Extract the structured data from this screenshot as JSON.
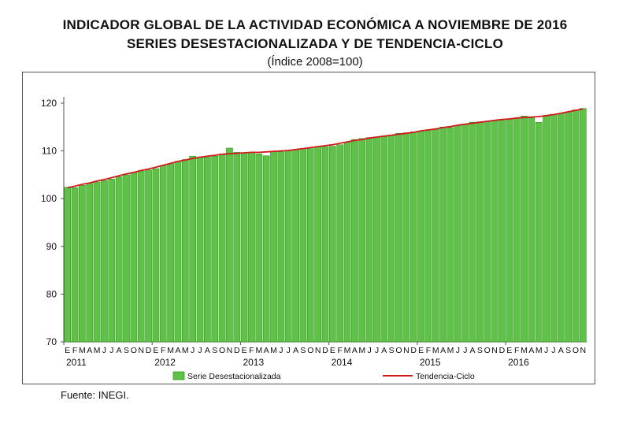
{
  "header": {
    "title_line1": "INDICADOR GLOBAL DE LA ACTIVIDAD ECONÓMICA A NOVIEMBRE DE 2016",
    "title_line2": "SERIES DESESTACIONALIZADA Y DE TENDENCIA-CICLO",
    "subtitle": "(Índice 2008=100)"
  },
  "footer": {
    "source": "Fuente: INEGI."
  },
  "colors": {
    "bar_fill": "#5ec246",
    "bar_edge": "#2e8a1c",
    "trend": "#d11a1a",
    "axis": "#555555"
  },
  "chart_data": {
    "type": "bar",
    "ylim": [
      70,
      120
    ],
    "yticks": [
      70,
      80,
      90,
      100,
      110,
      120
    ],
    "grid": false,
    "month_labels": [
      "E",
      "F",
      "M",
      "A",
      "M",
      "J",
      "J",
      "A",
      "S",
      "O",
      "N",
      "D"
    ],
    "years": [
      "2011",
      "2012",
      "2013",
      "2014",
      "2015",
      "2016"
    ],
    "categories": [
      "2011-01",
      "2011-02",
      "2011-03",
      "2011-04",
      "2011-05",
      "2011-06",
      "2011-07",
      "2011-08",
      "2011-09",
      "2011-10",
      "2011-11",
      "2011-12",
      "2012-01",
      "2012-02",
      "2012-03",
      "2012-04",
      "2012-05",
      "2012-06",
      "2012-07",
      "2012-08",
      "2012-09",
      "2012-10",
      "2012-11",
      "2012-12",
      "2013-01",
      "2013-02",
      "2013-03",
      "2013-04",
      "2013-05",
      "2013-06",
      "2013-07",
      "2013-08",
      "2013-09",
      "2013-10",
      "2013-11",
      "2013-12",
      "2014-01",
      "2014-02",
      "2014-03",
      "2014-04",
      "2014-05",
      "2014-06",
      "2014-07",
      "2014-08",
      "2014-09",
      "2014-10",
      "2014-11",
      "2014-12",
      "2015-01",
      "2015-02",
      "2015-03",
      "2015-04",
      "2015-05",
      "2015-06",
      "2015-07",
      "2015-08",
      "2015-09",
      "2015-10",
      "2015-11",
      "2015-12",
      "2016-01",
      "2016-02",
      "2016-03",
      "2016-04",
      "2016-05",
      "2016-06",
      "2016-07",
      "2016-08",
      "2016-09",
      "2016-10",
      "2016-11"
    ],
    "legend_position": "bottom",
    "series": [
      {
        "name": "Serie Desestacionalizada",
        "kind": "bar",
        "values": [
          102.4,
          102.3,
          102.8,
          103.2,
          103.5,
          103.8,
          104.1,
          104.6,
          105.0,
          105.5,
          105.8,
          106.0,
          106.3,
          106.9,
          107.3,
          107.8,
          108.2,
          108.9,
          108.6,
          108.7,
          108.9,
          109.3,
          110.6,
          109.7,
          109.6,
          109.7,
          109.4,
          109.0,
          109.9,
          109.8,
          110.1,
          110.3,
          110.5,
          110.5,
          110.9,
          110.9,
          111.0,
          111.3,
          111.8,
          112.4,
          112.6,
          112.8,
          112.9,
          113.0,
          113.2,
          113.7,
          113.8,
          114.0,
          114.2,
          114.3,
          114.5,
          115.0,
          114.9,
          115.3,
          115.6,
          116.0,
          116.1,
          116.1,
          116.3,
          116.4,
          116.7,
          116.8,
          117.3,
          116.9,
          116.0,
          117.4,
          117.7,
          117.8,
          118.1,
          118.6,
          118.9
        ]
      },
      {
        "name": "Tendencia-Ciclo",
        "kind": "line",
        "values": [
          102.3,
          102.6,
          103.0,
          103.3,
          103.7,
          104.0,
          104.4,
          104.8,
          105.2,
          105.5,
          105.9,
          106.2,
          106.6,
          107.0,
          107.4,
          107.8,
          108.1,
          108.4,
          108.7,
          108.9,
          109.1,
          109.3,
          109.4,
          109.5,
          109.6,
          109.7,
          109.7,
          109.8,
          109.9,
          110.0,
          110.1,
          110.3,
          110.5,
          110.7,
          110.9,
          111.1,
          111.3,
          111.6,
          111.9,
          112.2,
          112.4,
          112.7,
          112.9,
          113.1,
          113.3,
          113.5,
          113.7,
          113.9,
          114.2,
          114.4,
          114.6,
          114.9,
          115.1,
          115.4,
          115.6,
          115.8,
          116.0,
          116.2,
          116.4,
          116.6,
          116.7,
          116.9,
          117.0,
          117.1,
          117.2,
          117.4,
          117.6,
          117.9,
          118.2,
          118.5,
          118.8
        ]
      }
    ]
  }
}
